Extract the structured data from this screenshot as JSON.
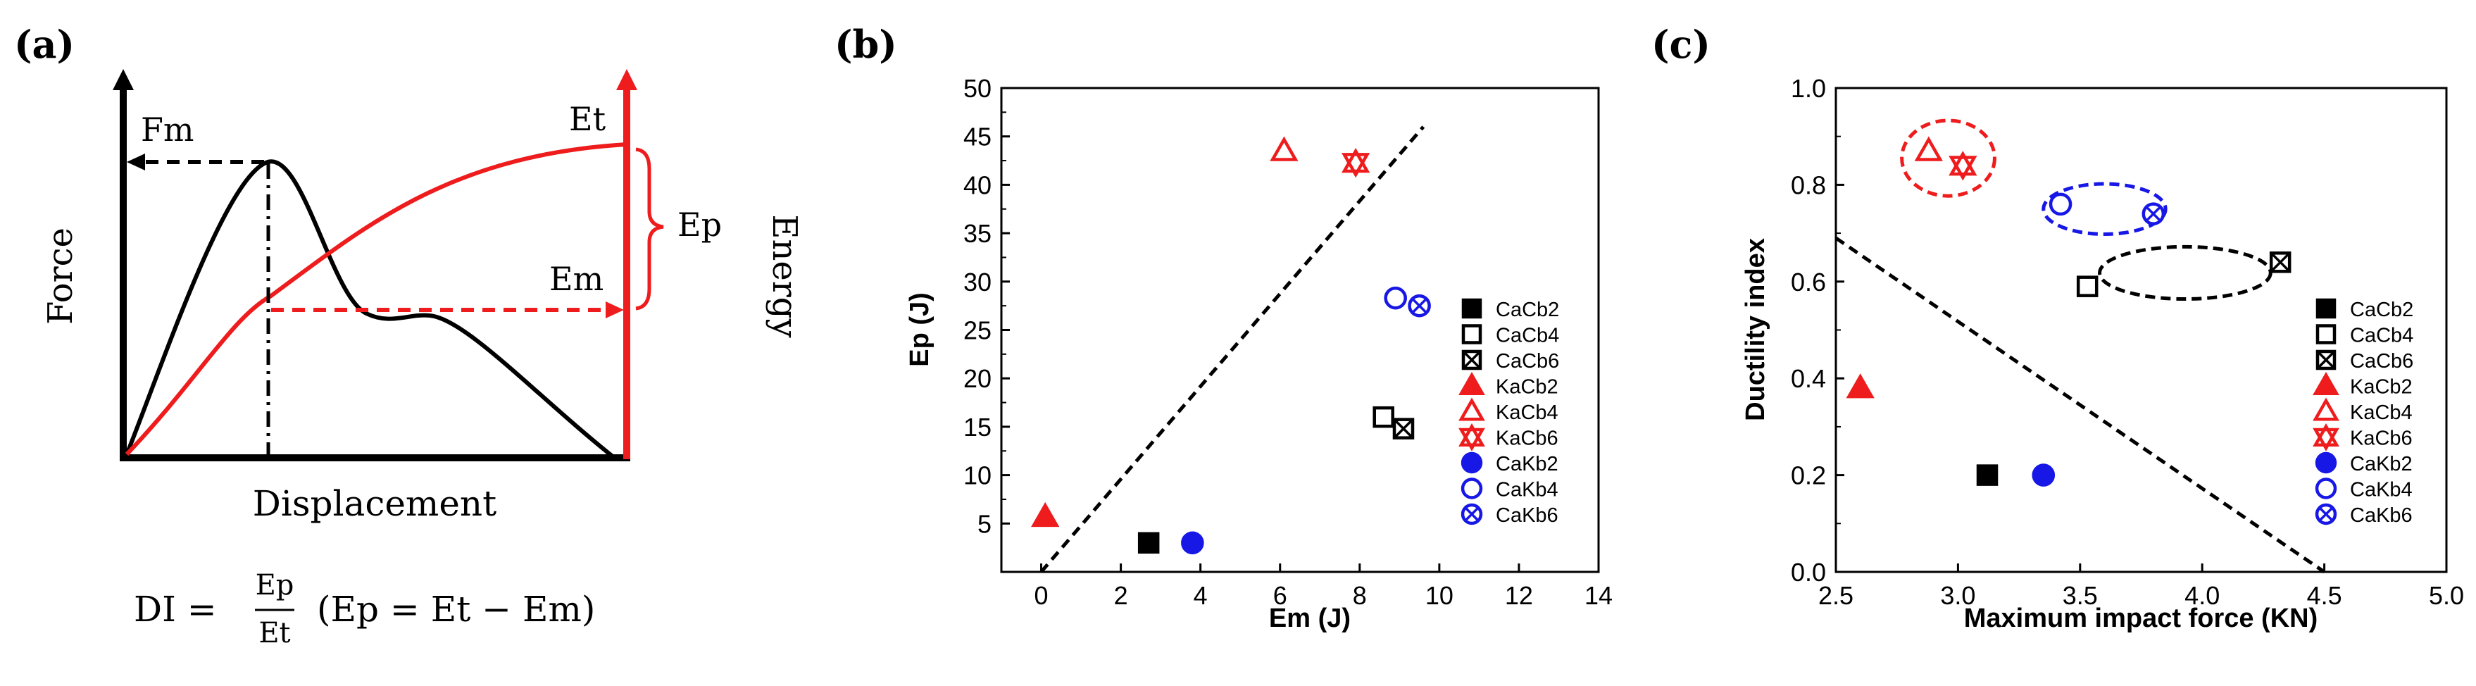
{
  "colors": {
    "black": "#000000",
    "red": "#ee1c1c",
    "blue": "#1717e6"
  },
  "panel_labels": [
    "(a)",
    "(b)",
    "(c)"
  ],
  "schematic": {
    "y_label": "Force",
    "x_label": "Displacement",
    "y2_label": "Energy",
    "labels": {
      "fm": "Fm",
      "et": "Et",
      "ep": "Ep",
      "em": "Em"
    },
    "formula": "DI = Ep/Et  (Ep = Et − Em)",
    "formula_parts": {
      "lhs": "DI =",
      "num": "Ep",
      "den": "Et",
      "rhs": "(Ep = Et − Em)"
    }
  },
  "legend_entries": [
    {
      "name": "CaCb2",
      "color": "black",
      "marker": "square-filled"
    },
    {
      "name": "CaCb4",
      "color": "black",
      "marker": "square-open"
    },
    {
      "name": "CaCb6",
      "color": "black",
      "marker": "square-cross"
    },
    {
      "name": "KaCb2",
      "color": "red",
      "marker": "triangle-filled"
    },
    {
      "name": "KaCb4",
      "color": "red",
      "marker": "triangle-open"
    },
    {
      "name": "KaCb6",
      "color": "red",
      "marker": "triangle-cross"
    },
    {
      "name": "CaKb2",
      "color": "blue",
      "marker": "circle-filled"
    },
    {
      "name": "CaKb4",
      "color": "blue",
      "marker": "circle-open"
    },
    {
      "name": "CaKb6",
      "color": "blue",
      "marker": "circle-cross"
    }
  ],
  "chart_data": [
    {
      "panel": "(b)",
      "type": "scatter",
      "xlabel": "Em (J)",
      "ylabel": "Ep (J)",
      "xlim": [
        -1,
        14
      ],
      "ylim": [
        0,
        50
      ],
      "xticks": [
        0,
        2,
        4,
        6,
        8,
        10,
        12,
        14
      ],
      "yticks": [
        5,
        10,
        15,
        20,
        25,
        30,
        35,
        40,
        45,
        50
      ],
      "tick_labels_x": [
        "0",
        "2",
        "4",
        "6",
        "8",
        "10",
        "12",
        "14"
      ],
      "tick_labels_y": [
        "5",
        "10",
        "15",
        "20",
        "25",
        "30",
        "35",
        "40",
        "45",
        "50"
      ],
      "reference_line": {
        "style": "dashed",
        "from": [
          0,
          0
        ],
        "to": [
          9.6,
          46
        ]
      },
      "points": [
        {
          "series": "CaCb2",
          "x": 2.7,
          "y": 3
        },
        {
          "series": "CaCb4",
          "x": 8.6,
          "y": 16
        },
        {
          "series": "CaCb6",
          "x": 9.1,
          "y": 14.8
        },
        {
          "series": "KaCb2",
          "x": 0.1,
          "y": 5.7
        },
        {
          "series": "KaCb4",
          "x": 6.1,
          "y": 43.5
        },
        {
          "series": "KaCb6",
          "x": 7.9,
          "y": 42.3
        },
        {
          "series": "CaKb2",
          "x": 3.8,
          "y": 3
        },
        {
          "series": "CaKb4",
          "x": 8.9,
          "y": 28.3
        },
        {
          "series": "CaKb6",
          "x": 9.5,
          "y": 27.5
        }
      ]
    },
    {
      "panel": "(c)",
      "type": "scatter",
      "xlabel": "Maximum impact force  (KN)",
      "ylabel": "Ductility index",
      "xlim": [
        2.5,
        5.0
      ],
      "ylim": [
        0.0,
        1.0
      ],
      "xticks": [
        2.5,
        3.0,
        3.5,
        4.0,
        4.5,
        5.0
      ],
      "yticks": [
        0.0,
        0.2,
        0.4,
        0.6,
        0.8,
        1.0
      ],
      "tick_labels_x": [
        "2.5",
        "3.0",
        "3.5",
        "4.0",
        "4.5",
        "5.0"
      ],
      "tick_labels_y": [
        "0.0",
        "0.2",
        "0.4",
        "0.6",
        "0.8",
        "1.0"
      ],
      "reference_line": {
        "style": "dashed",
        "from": [
          2.5,
          0.69
        ],
        "to": [
          4.5,
          0.0
        ]
      },
      "ellipses": [
        {
          "color": "red",
          "cx": 2.96,
          "cy": 0.855,
          "rx": 0.19,
          "ry": 0.078
        },
        {
          "color": "blue",
          "cx": 3.6,
          "cy": 0.75,
          "rx": 0.25,
          "ry": 0.052
        },
        {
          "color": "black",
          "cx": 3.93,
          "cy": 0.618,
          "rx": 0.35,
          "ry": 0.054
        }
      ],
      "points": [
        {
          "series": "CaCb2",
          "x": 3.12,
          "y": 0.2
        },
        {
          "series": "CaCb4",
          "x": 3.53,
          "y": 0.59
        },
        {
          "series": "CaCb6",
          "x": 4.32,
          "y": 0.64
        },
        {
          "series": "KaCb2",
          "x": 2.6,
          "y": 0.38
        },
        {
          "series": "KaCb4",
          "x": 2.88,
          "y": 0.87
        },
        {
          "series": "KaCb6",
          "x": 3.02,
          "y": 0.84
        },
        {
          "series": "CaKb2",
          "x": 3.35,
          "y": 0.2
        },
        {
          "series": "CaKb4",
          "x": 3.42,
          "y": 0.76
        },
        {
          "series": "CaKb6",
          "x": 3.8,
          "y": 0.74
        }
      ]
    }
  ]
}
